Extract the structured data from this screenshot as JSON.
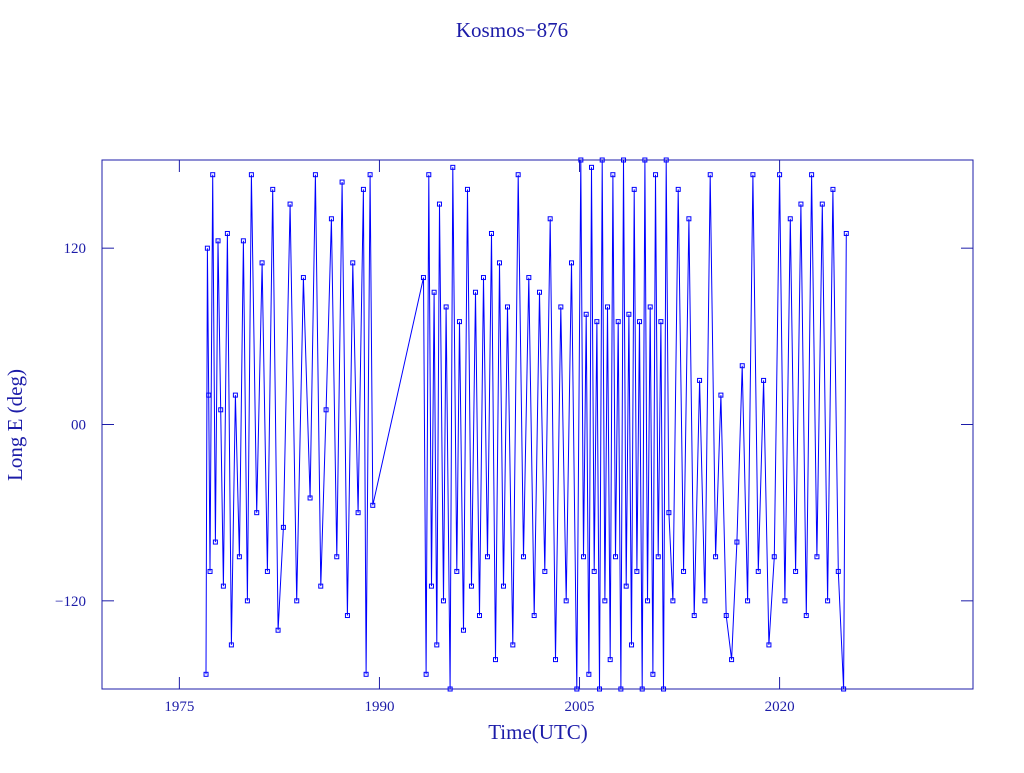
{
  "chart_data": {
    "type": "line",
    "title": "Kosmos−876",
    "x_label": "Time(UTC)",
    "y_label": "Long E (deg)",
    "color": "#0000ff",
    "markers": true,
    "xlim": [
      1969.2,
      2034.5
    ],
    "ylim": [
      -180,
      180
    ],
    "xticks": [
      1975,
      1990,
      2005,
      2020
    ],
    "yticks": [
      {
        "value": 120,
        "label": "120"
      },
      {
        "value": 0,
        "label": "00"
      },
      {
        "value": -120,
        "label": "−120"
      }
    ],
    "x": [
      1977.0,
      1977.1,
      1977.2,
      1977.3,
      1977.5,
      1977.7,
      1977.9,
      1978.1,
      1978.3,
      1978.6,
      1978.9,
      1979.2,
      1979.5,
      1979.8,
      1980.1,
      1980.4,
      1980.8,
      1981.2,
      1981.6,
      1982.0,
      1982.4,
      1982.8,
      1983.3,
      1983.8,
      1984.3,
      1984.8,
      1985.2,
      1985.6,
      1986.0,
      1986.4,
      1986.8,
      1987.2,
      1987.6,
      1988.0,
      1988.4,
      1988.8,
      1989.0,
      1989.3,
      1989.5,
      1993.3,
      1993.5,
      1993.7,
      1993.9,
      1994.1,
      1994.3,
      1994.5,
      1994.8,
      1995.0,
      1995.3,
      1995.5,
      1995.8,
      1996.0,
      1996.3,
      1996.6,
      1996.9,
      1997.2,
      1997.5,
      1997.8,
      1998.1,
      1998.4,
      1998.7,
      1999.0,
      1999.3,
      1999.6,
      2000.0,
      2000.4,
      2000.8,
      2001.2,
      2001.6,
      2002.0,
      2002.4,
      2002.8,
      2003.2,
      2003.6,
      2004.0,
      2004.4,
      2004.8,
      2005.1,
      2005.3,
      2005.5,
      2005.7,
      2005.9,
      2006.1,
      2006.3,
      2006.5,
      2006.7,
      2006.9,
      2007.1,
      2007.3,
      2007.5,
      2007.7,
      2007.9,
      2008.1,
      2008.3,
      2008.5,
      2008.7,
      2008.9,
      2009.1,
      2009.3,
      2009.5,
      2009.7,
      2009.9,
      2010.1,
      2010.3,
      2010.5,
      2010.7,
      2010.9,
      2011.1,
      2011.3,
      2011.5,
      2011.7,
      2012.0,
      2012.4,
      2012.8,
      2013.2,
      2013.6,
      2014.0,
      2014.4,
      2014.8,
      2015.2,
      2015.6,
      2016.0,
      2016.4,
      2016.8,
      2017.2,
      2017.6,
      2018.0,
      2018.4,
      2018.8,
      2019.2,
      2019.6,
      2020.0,
      2020.4,
      2020.8,
      2021.2,
      2021.6,
      2022.0,
      2022.4,
      2022.8,
      2023.2,
      2023.6,
      2024.0,
      2024.4,
      2024.8,
      2025.0
    ],
    "values": [
      -170,
      120,
      20,
      -100,
      170,
      -80,
      125,
      10,
      -110,
      130,
      -150,
      20,
      -90,
      125,
      -120,
      170,
      -60,
      110,
      -100,
      160,
      -140,
      -70,
      150,
      -120,
      100,
      -50,
      170,
      -110,
      10,
      140,
      -90,
      165,
      -130,
      110,
      -60,
      160,
      -170,
      170,
      -55,
      100,
      -170,
      170,
      -110,
      90,
      -150,
      150,
      -120,
      80,
      -180,
      175,
      -100,
      70,
      -140,
      160,
      -110,
      90,
      -130,
      100,
      -90,
      130,
      -160,
      110,
      -110,
      80,
      -150,
      170,
      -90,
      100,
      -130,
      90,
      -100,
      140,
      -160,
      80,
      -120,
      110,
      -180,
      180,
      -90,
      75,
      -170,
      175,
      -100,
      70,
      -180,
      180,
      -120,
      80,
      -160,
      170,
      -90,
      70,
      -180,
      180,
      -110,
      75,
      -150,
      160,
      -100,
      70,
      -180,
      180,
      -120,
      80,
      -170,
      170,
      -90,
      70,
      -180,
      180,
      -60,
      -120,
      160,
      -100,
      140,
      -130,
      30,
      -120,
      170,
      -90,
      20,
      -130,
      -160,
      -80,
      40,
      -120,
      170,
      -100,
      30,
      -150,
      -90,
      170,
      -120,
      140,
      -100,
      150,
      -130,
      170,
      -90,
      150,
      -120,
      160,
      -100,
      -180,
      130
    ]
  }
}
